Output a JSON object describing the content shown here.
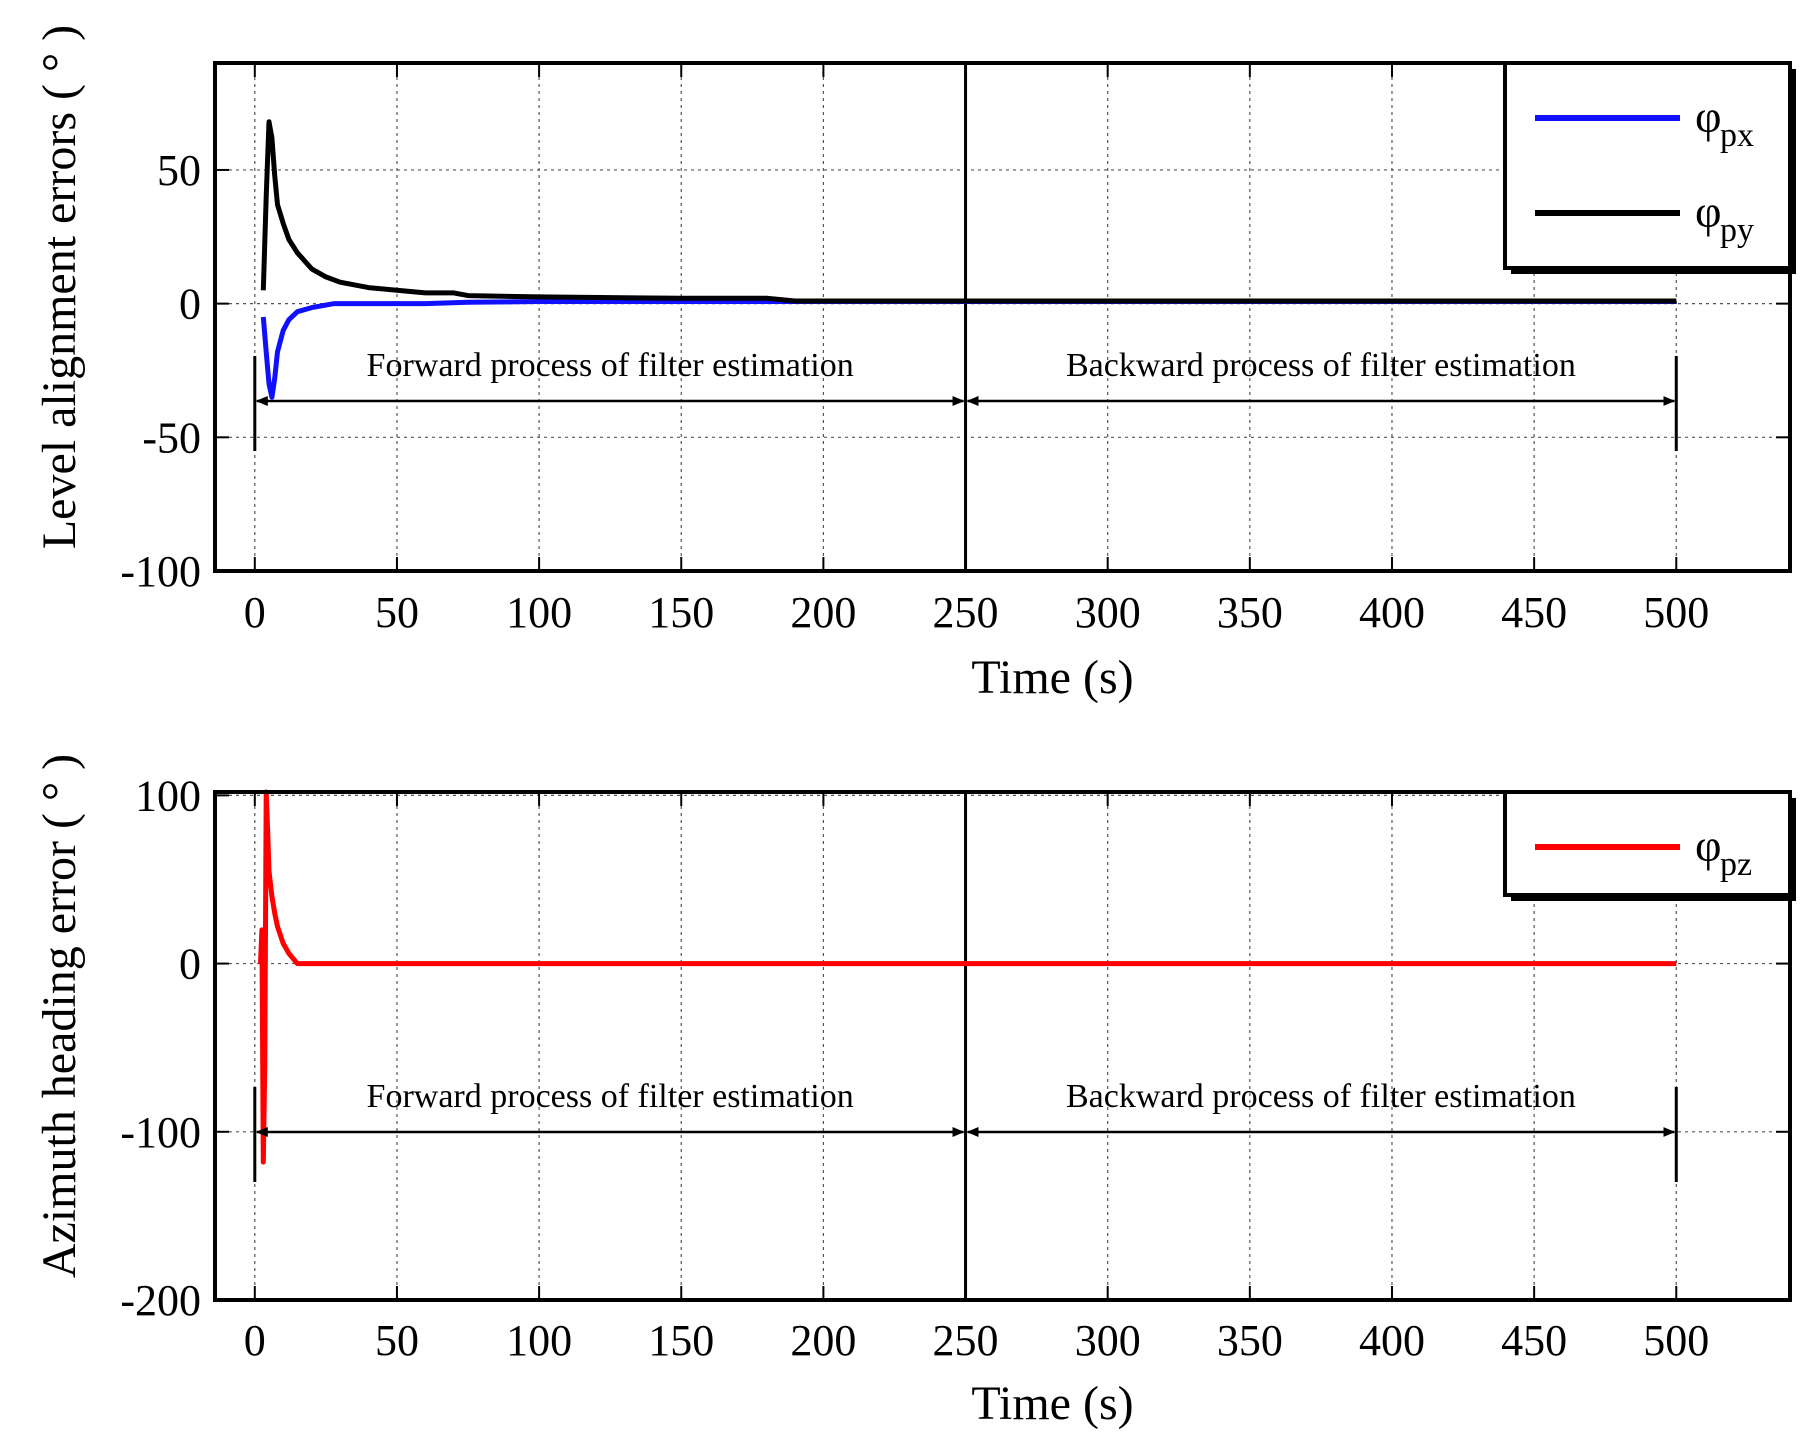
{
  "chart_data": [
    {
      "type": "line",
      "xlabel": "Time (s)",
      "ylabel": "Level alignment errors ( ° )",
      "xlim": [
        -14,
        540
      ],
      "ylim": [
        -100,
        90
      ],
      "xticks": [
        0,
        50,
        100,
        150,
        200,
        250,
        300,
        350,
        400,
        450,
        500
      ],
      "yticks": [
        -100,
        -50,
        0,
        50
      ],
      "grid": true,
      "legend_position": "top-right",
      "series": [
        {
          "name": "φpx",
          "legend_symbol": "φ",
          "legend_sub": "px",
          "color": "#1010ff",
          "x": [
            3,
            4,
            5,
            6,
            7,
            8,
            10,
            12,
            15,
            20,
            28,
            40,
            60,
            75,
            100,
            150,
            500
          ],
          "y": [
            -5,
            -18,
            -30,
            -35,
            -28,
            -18,
            -10,
            -6,
            -3,
            -1.5,
            0,
            0,
            0,
            0.5,
            0.8,
            0.8,
            0.8
          ]
        },
        {
          "name": "φpy",
          "legend_symbol": "φ",
          "legend_sub": "py",
          "color": "#000000",
          "x": [
            3,
            4,
            5,
            6,
            7,
            8,
            10,
            12,
            15,
            20,
            25,
            30,
            40,
            50,
            60,
            70,
            75,
            100,
            150,
            180,
            190,
            500
          ],
          "y": [
            5,
            40,
            68,
            62,
            48,
            37,
            30,
            24,
            19,
            13,
            10,
            8,
            6,
            5,
            4,
            4,
            3,
            2.5,
            2,
            2,
            1,
            1
          ]
        }
      ],
      "annotations": [
        {
          "text": "Forward process of filter estimation",
          "from": 0,
          "to": 250,
          "y": -50
        },
        {
          "text": "Backward process of filter estimation",
          "from": 250,
          "to": 500,
          "y": -50
        }
      ],
      "vline": 250
    },
    {
      "type": "line",
      "xlabel": "Time (s)",
      "ylabel": "Azimuth heading error ( ° )",
      "xlim": [
        -14,
        540
      ],
      "ylim": [
        -200,
        102
      ],
      "xticks": [
        0,
        50,
        100,
        150,
        200,
        250,
        300,
        350,
        400,
        450,
        500
      ],
      "yticks": [
        -200,
        -100,
        0,
        100
      ],
      "grid": true,
      "legend_position": "top-right",
      "series": [
        {
          "name": "φpz",
          "legend_symbol": "φ",
          "legend_sub": "pz",
          "color": "#ff0000",
          "x": [
            2,
            2.5,
            3,
            3.5,
            4,
            4.5,
            5,
            6,
            7,
            8,
            10,
            12,
            15,
            20,
            500
          ],
          "y": [
            0,
            20,
            -118,
            -60,
            102,
            80,
            55,
            40,
            30,
            22,
            12,
            6,
            0,
            0,
            0
          ]
        }
      ],
      "annotations": [
        {
          "text": "Forward process of filter estimation",
          "from": 0,
          "to": 250,
          "y": -100
        },
        {
          "text": "Backward process of filter estimation",
          "from": 250,
          "to": 500,
          "y": -100
        }
      ],
      "vline": 250
    }
  ]
}
